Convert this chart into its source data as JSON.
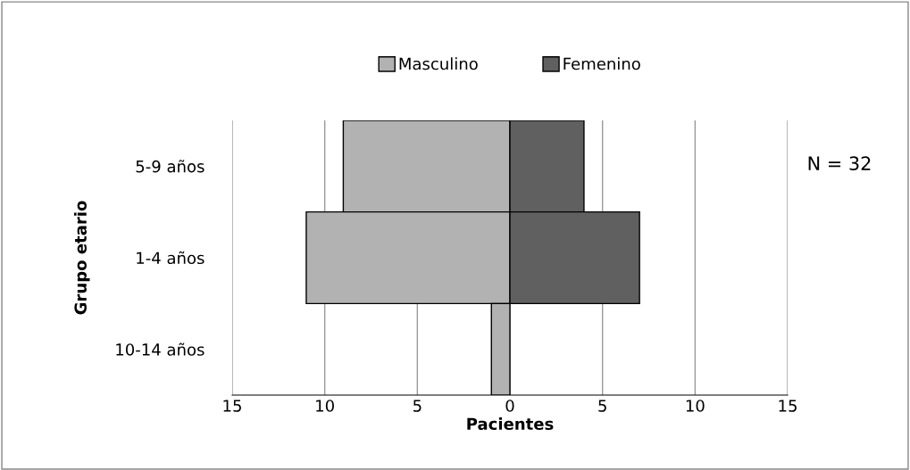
{
  "chart_data": {
    "type": "bar",
    "orientation": "horizontal",
    "xlabel": "Pacientes",
    "ylabel": "Grupo etario",
    "categories": [
      "5-9 años",
      "1-4 años",
      "10-14 años"
    ],
    "series": [
      {
        "name": "Masculino",
        "color": "#b2b2b2",
        "values": [
          -9,
          -11,
          -1
        ]
      },
      {
        "name": "Femenino",
        "color": "#606060",
        "values": [
          4,
          7,
          null
        ]
      }
    ],
    "stacked": true,
    "xlim": [
      -15,
      15
    ],
    "xticks": [
      {
        "value": -15,
        "label": "15"
      },
      {
        "value": -10,
        "label": "10"
      },
      {
        "value": -5,
        "label": "5"
      },
      0,
      5,
      10,
      15
    ],
    "grid": "x",
    "legend": "top",
    "annotations": [
      "N = 32"
    ]
  }
}
